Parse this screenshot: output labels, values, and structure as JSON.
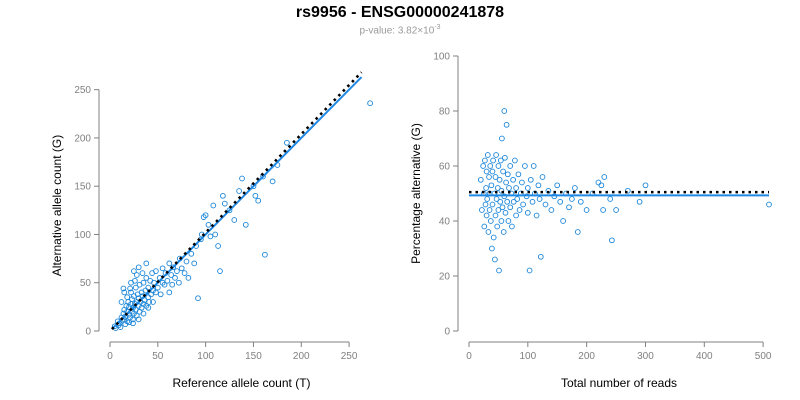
{
  "title": "rs9956 - ENSG00000241878",
  "subtitle": {
    "prefix": "p-value: 3.82×10",
    "exponent": "-3"
  },
  "colors": {
    "points": "#1c86d8",
    "fit": "#1e88e5",
    "reference": "#000000",
    "axis": "#808080"
  },
  "chart_data": [
    {
      "type": "scatter",
      "xlabel": "Reference allele count (T)",
      "ylabel": "Alternative allele count (G)",
      "xlim": [
        0,
        275
      ],
      "ylim": [
        0,
        260
      ],
      "xticks": [
        0,
        50,
        100,
        150,
        200,
        250
      ],
      "yticks": [
        0,
        50,
        100,
        150,
        200,
        250
      ],
      "grid": false,
      "fit_line": [
        [
          2,
          2
        ],
        [
          263,
          263
        ]
      ],
      "reference_line": [
        [
          2,
          2
        ],
        [
          263,
          268
        ]
      ],
      "points": [
        [
          5,
          5
        ],
        [
          8,
          10
        ],
        [
          10,
          8
        ],
        [
          12,
          14
        ],
        [
          13,
          11
        ],
        [
          14,
          18
        ],
        [
          15,
          12
        ],
        [
          15,
          22
        ],
        [
          16,
          15
        ],
        [
          17,
          26
        ],
        [
          18,
          20
        ],
        [
          18,
          10
        ],
        [
          19,
          30
        ],
        [
          20,
          17
        ],
        [
          20,
          25
        ],
        [
          21,
          14
        ],
        [
          22,
          28
        ],
        [
          22,
          40
        ],
        [
          23,
          20
        ],
        [
          23,
          33
        ],
        [
          24,
          24
        ],
        [
          24,
          12
        ],
        [
          25,
          36
        ],
        [
          25,
          18
        ],
        [
          26,
          28
        ],
        [
          27,
          22
        ],
        [
          27,
          45
        ],
        [
          28,
          30
        ],
        [
          28,
          16
        ],
        [
          29,
          38
        ],
        [
          30,
          26
        ],
        [
          30,
          34
        ],
        [
          31,
          20
        ],
        [
          31,
          48
        ],
        [
          32,
          30
        ],
        [
          33,
          24
        ],
        [
          33,
          40
        ],
        [
          34,
          36
        ],
        [
          35,
          28
        ],
        [
          35,
          50
        ],
        [
          36,
          32
        ],
        [
          37,
          42
        ],
        [
          38,
          26
        ],
        [
          38,
          55
        ],
        [
          40,
          35
        ],
        [
          40,
          45
        ],
        [
          41,
          30
        ],
        [
          42,
          52
        ],
        [
          43,
          38
        ],
        [
          44,
          60
        ],
        [
          45,
          42
        ],
        [
          45,
          30
        ],
        [
          46,
          50
        ],
        [
          48,
          40
        ],
        [
          48,
          62
        ],
        [
          50,
          45
        ],
        [
          52,
          55
        ],
        [
          53,
          38
        ],
        [
          55,
          50
        ],
        [
          55,
          65
        ],
        [
          57,
          48
        ],
        [
          58,
          60
        ],
        [
          60,
          52
        ],
        [
          62,
          40
        ],
        [
          62,
          70
        ],
        [
          64,
          58
        ],
        [
          65,
          48
        ],
        [
          66,
          66
        ],
        [
          68,
          55
        ],
        [
          70,
          62
        ],
        [
          72,
          50
        ],
        [
          73,
          75
        ],
        [
          75,
          65
        ],
        [
          78,
          60
        ],
        [
          80,
          72
        ],
        [
          82,
          55
        ],
        [
          85,
          80
        ],
        [
          88,
          70
        ],
        [
          90,
          88
        ],
        [
          92,
          34
        ],
        [
          95,
          95
        ],
        [
          96,
          100
        ],
        [
          98,
          118
        ],
        [
          100,
          120
        ],
        [
          103,
          110
        ],
        [
          105,
          98
        ],
        [
          108,
          130
        ],
        [
          110,
          100
        ],
        [
          113,
          88
        ],
        [
          115,
          62
        ],
        [
          118,
          140
        ],
        [
          120,
          132
        ],
        [
          125,
          125
        ],
        [
          130,
          115
        ],
        [
          135,
          145
        ],
        [
          138,
          158
        ],
        [
          142,
          110
        ],
        [
          150,
          150
        ],
        [
          152,
          140
        ],
        [
          155,
          135
        ],
        [
          160,
          160
        ],
        [
          162,
          79
        ],
        [
          170,
          155
        ],
        [
          175,
          172
        ],
        [
          185,
          195
        ],
        [
          272,
          236
        ],
        [
          6,
          3
        ],
        [
          9,
          6
        ],
        [
          11,
          4
        ],
        [
          16,
          7
        ],
        [
          20,
          9
        ],
        [
          24,
          8
        ],
        [
          30,
          12
        ],
        [
          35,
          18
        ],
        [
          40,
          24
        ],
        [
          15,
          40
        ],
        [
          18,
          35
        ],
        [
          12,
          30
        ],
        [
          22,
          50
        ],
        [
          25,
          62
        ],
        [
          28,
          58
        ],
        [
          30,
          66
        ],
        [
          14,
          44
        ],
        [
          21,
          44
        ],
        [
          26,
          52
        ],
        [
          34,
          60
        ],
        [
          38,
          70
        ]
      ]
    },
    {
      "type": "scatter",
      "xlabel": "Total number of reads",
      "ylabel": "Percentage alternative (G)",
      "xlim": [
        0,
        510
      ],
      "ylim": [
        0,
        100
      ],
      "xticks": [
        0,
        100,
        200,
        300,
        400,
        500
      ],
      "yticks": [
        0,
        20,
        40,
        60,
        80,
        100
      ],
      "grid": false,
      "fit_line": [
        [
          0,
          49.3
        ],
        [
          510,
          49.3
        ]
      ],
      "reference_line": [
        [
          0,
          50.5
        ],
        [
          510,
          50.5
        ]
      ],
      "points": [
        [
          20,
          55
        ],
        [
          22,
          44
        ],
        [
          24,
          60
        ],
        [
          25,
          50
        ],
        [
          26,
          38
        ],
        [
          27,
          62
        ],
        [
          28,
          46
        ],
        [
          29,
          52
        ],
        [
          30,
          58
        ],
        [
          30,
          42
        ],
        [
          31,
          48
        ],
        [
          32,
          64
        ],
        [
          33,
          36
        ],
        [
          34,
          56
        ],
        [
          35,
          50
        ],
        [
          35,
          44
        ],
        [
          36,
          60
        ],
        [
          37,
          40
        ],
        [
          38,
          53
        ],
        [
          39,
          30
        ],
        [
          40,
          58
        ],
        [
          40,
          46
        ],
        [
          41,
          62
        ],
        [
          42,
          34
        ],
        [
          43,
          50
        ],
        [
          44,
          26
        ],
        [
          45,
          56
        ],
        [
          45,
          42
        ],
        [
          46,
          64
        ],
        [
          47,
          48
        ],
        [
          48,
          38
        ],
        [
          49,
          52
        ],
        [
          50,
          60
        ],
        [
          50,
          44
        ],
        [
          51,
          22
        ],
        [
          52,
          55
        ],
        [
          53,
          47
        ],
        [
          54,
          62
        ],
        [
          55,
          40
        ],
        [
          55,
          51
        ],
        [
          56,
          70
        ],
        [
          57,
          45
        ],
        [
          58,
          58
        ],
        [
          59,
          36
        ],
        [
          60,
          80
        ],
        [
          60,
          49
        ],
        [
          61,
          63
        ],
        [
          62,
          43
        ],
        [
          63,
          54
        ],
        [
          64,
          75
        ],
        [
          65,
          47
        ],
        [
          66,
          57
        ],
        [
          67,
          40
        ],
        [
          68,
          52
        ],
        [
          70,
          60
        ],
        [
          70,
          45
        ],
        [
          72,
          50
        ],
        [
          73,
          38
        ],
        [
          75,
          55
        ],
        [
          76,
          47
        ],
        [
          78,
          62
        ],
        [
          80,
          42
        ],
        [
          80,
          52
        ],
        [
          82,
          48
        ],
        [
          84,
          57
        ],
        [
          86,
          44
        ],
        [
          88,
          50
        ],
        [
          90,
          54
        ],
        [
          92,
          46
        ],
        [
          95,
          60
        ],
        [
          98,
          49
        ],
        [
          100,
          43
        ],
        [
          100,
          52
        ],
        [
          103,
          22
        ],
        [
          105,
          55
        ],
        [
          108,
          47
        ],
        [
          110,
          60
        ],
        [
          112,
          50
        ],
        [
          115,
          42
        ],
        [
          118,
          53
        ],
        [
          120,
          48
        ],
        [
          122,
          27
        ],
        [
          125,
          56
        ],
        [
          130,
          46
        ],
        [
          135,
          51
        ],
        [
          140,
          44
        ],
        [
          145,
          49
        ],
        [
          150,
          53
        ],
        [
          155,
          47
        ],
        [
          160,
          40
        ],
        [
          165,
          50
        ],
        [
          170,
          45
        ],
        [
          175,
          48
        ],
        [
          180,
          52
        ],
        [
          185,
          36
        ],
        [
          190,
          47
        ],
        [
          200,
          44
        ],
        [
          210,
          50
        ],
        [
          220,
          54
        ],
        [
          225,
          53
        ],
        [
          228,
          44
        ],
        [
          230,
          56
        ],
        [
          240,
          48
        ],
        [
          243,
          33
        ],
        [
          250,
          44
        ],
        [
          270,
          51
        ],
        [
          290,
          47
        ],
        [
          300,
          53
        ],
        [
          510,
          46
        ]
      ]
    }
  ]
}
